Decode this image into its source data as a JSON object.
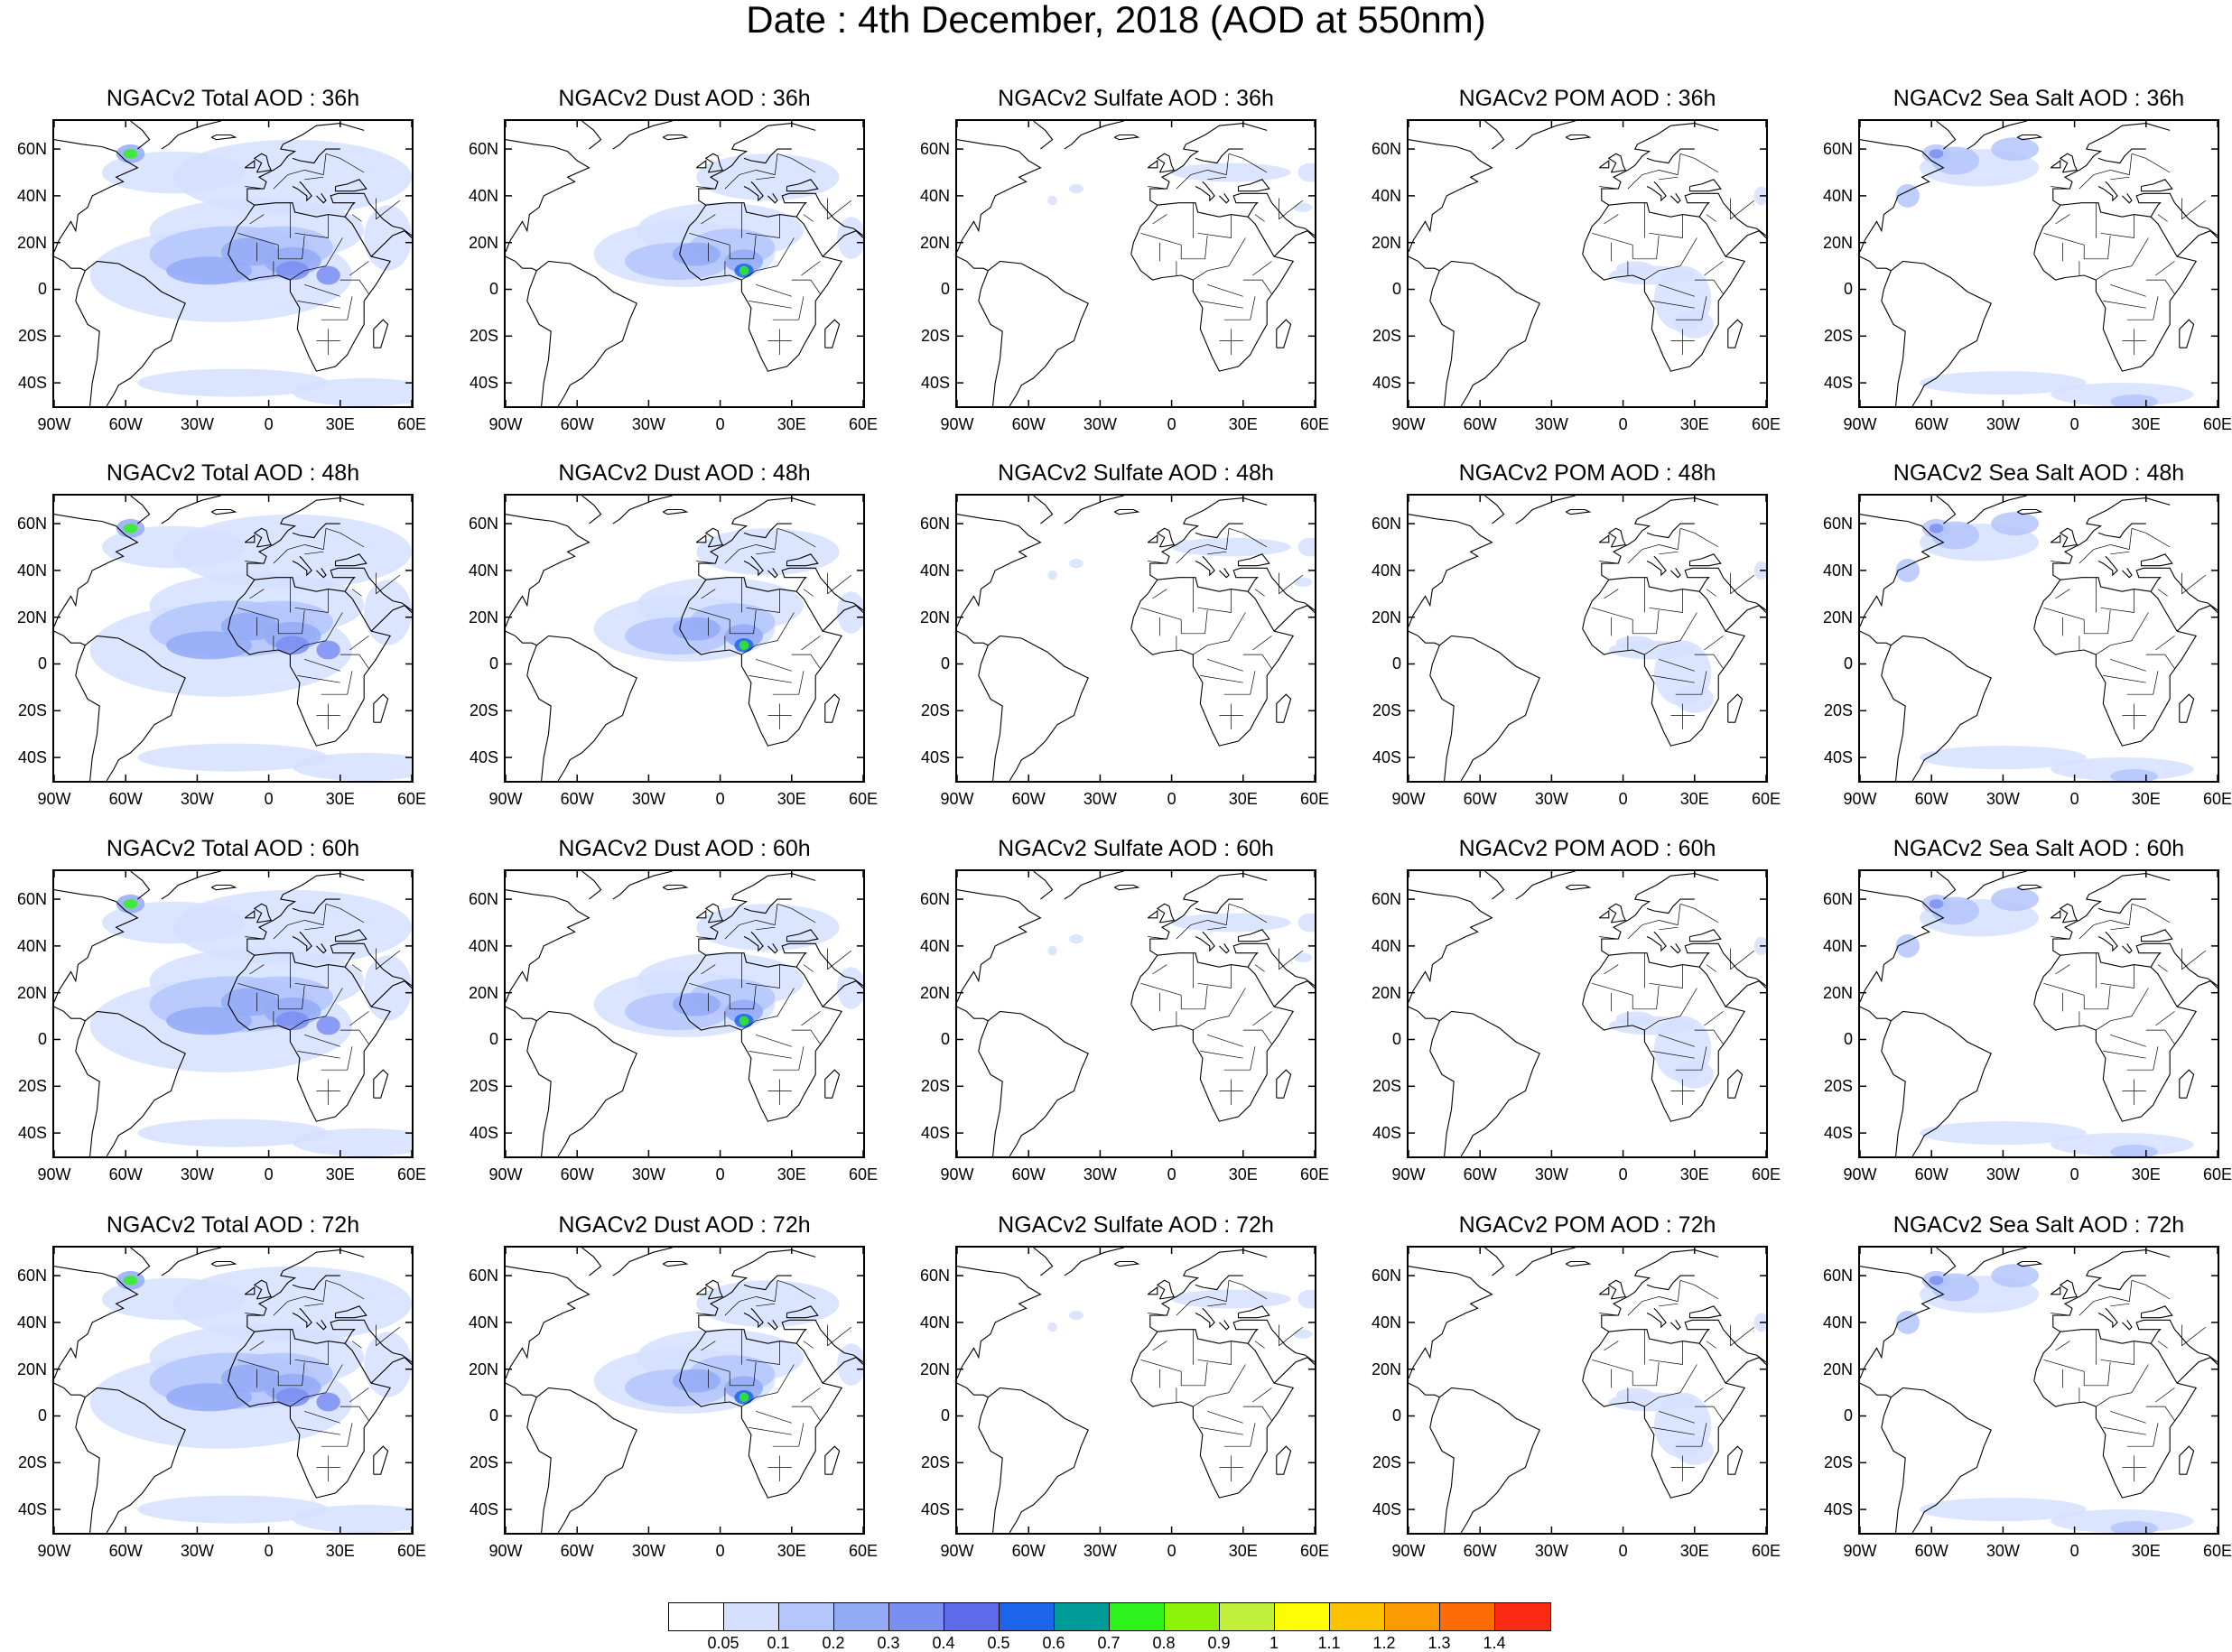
{
  "title": "Date : 4th December, 2018 (AOD at 550nm)",
  "axes": {
    "lat_ticks": [
      "60N",
      "40N",
      "20N",
      "0",
      "20S",
      "40S"
    ],
    "lon_ticks": [
      "90W",
      "60W",
      "30W",
      "0",
      "30E",
      "60E"
    ]
  },
  "panels": [
    [
      {
        "title": "NGACv2 Total AOD : 36h",
        "species": "total"
      },
      {
        "title": "NGACv2 Dust AOD : 36h",
        "species": "dust"
      },
      {
        "title": "NGACv2 Sulfate AOD : 36h",
        "species": "sulfate"
      },
      {
        "title": "NGACv2 POM AOD : 36h",
        "species": "pom"
      },
      {
        "title": "NGACv2 Sea Salt AOD : 36h",
        "species": "seasalt"
      }
    ],
    [
      {
        "title": "NGACv2 Total AOD : 48h",
        "species": "total"
      },
      {
        "title": "NGACv2 Dust AOD : 48h",
        "species": "dust"
      },
      {
        "title": "NGACv2 Sulfate AOD : 48h",
        "species": "sulfate"
      },
      {
        "title": "NGACv2 POM AOD : 48h",
        "species": "pom"
      },
      {
        "title": "NGACv2 Sea Salt AOD : 48h",
        "species": "seasalt"
      }
    ],
    [
      {
        "title": "NGACv2 Total AOD : 60h",
        "species": "total"
      },
      {
        "title": "NGACv2 Dust AOD : 60h",
        "species": "dust"
      },
      {
        "title": "NGACv2 Sulfate AOD : 60h",
        "species": "sulfate"
      },
      {
        "title": "NGACv2 POM AOD : 60h",
        "species": "pom"
      },
      {
        "title": "NGACv2 Sea Salt AOD : 60h",
        "species": "seasalt"
      }
    ],
    [
      {
        "title": "NGACv2 Total AOD : 72h",
        "species": "total"
      },
      {
        "title": "NGACv2 Dust AOD : 72h",
        "species": "dust"
      },
      {
        "title": "NGACv2 Sulfate AOD : 72h",
        "species": "sulfate"
      },
      {
        "title": "NGACv2 POM AOD : 72h",
        "species": "pom"
      },
      {
        "title": "NGACv2 Sea Salt  AOD : 72h",
        "species": "seasalt"
      }
    ]
  ],
  "legend": {
    "colors": [
      "#ffffff",
      "#d5e0ff",
      "#b4c6fb",
      "#93aaf6",
      "#7b8ef2",
      "#5f6ae8",
      "#1c64ea",
      "#009a97",
      "#2ef21c",
      "#8ef30b",
      "#c0f03a",
      "#fdfd08",
      "#fcc101",
      "#fb9a04",
      "#fb6c06",
      "#fa2a14"
    ],
    "labels": [
      "0.05",
      "0.1",
      "0.2",
      "0.3",
      "0.4",
      "0.5",
      "0.6",
      "0.7",
      "0.8",
      "0.9",
      "1",
      "1.1",
      "1.2",
      "1.3",
      "1.4"
    ]
  }
}
